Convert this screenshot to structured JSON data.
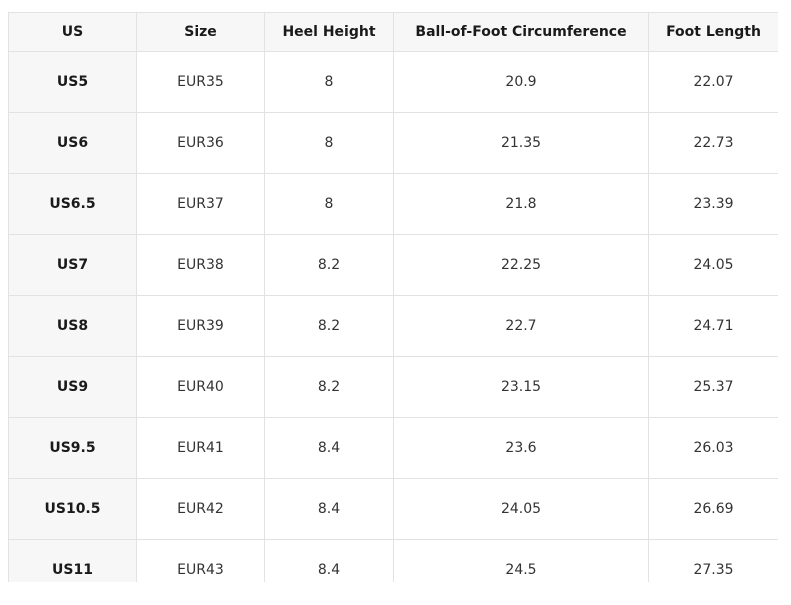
{
  "table": {
    "headers": [
      "US",
      "Size",
      "Heel Height",
      "Ball-of-Foot Circumference",
      "Foot Length"
    ],
    "rows": [
      [
        "US5",
        "EUR35",
        "8",
        "20.9",
        "22.07"
      ],
      [
        "US6",
        "EUR36",
        "8",
        "21.35",
        "22.73"
      ],
      [
        "US6.5",
        "EUR37",
        "8",
        "21.8",
        "23.39"
      ],
      [
        "US7",
        "EUR38",
        "8.2",
        "22.25",
        "24.05"
      ],
      [
        "US8",
        "EUR39",
        "8.2",
        "22.7",
        "24.71"
      ],
      [
        "US9",
        "EUR40",
        "8.2",
        "23.15",
        "25.37"
      ],
      [
        "US9.5",
        "EUR41",
        "8.4",
        "23.6",
        "26.03"
      ],
      [
        "US10.5",
        "EUR42",
        "8.4",
        "24.05",
        "26.69"
      ],
      [
        "US11",
        "EUR43",
        "8.4",
        "24.5",
        "27.35"
      ]
    ]
  }
}
